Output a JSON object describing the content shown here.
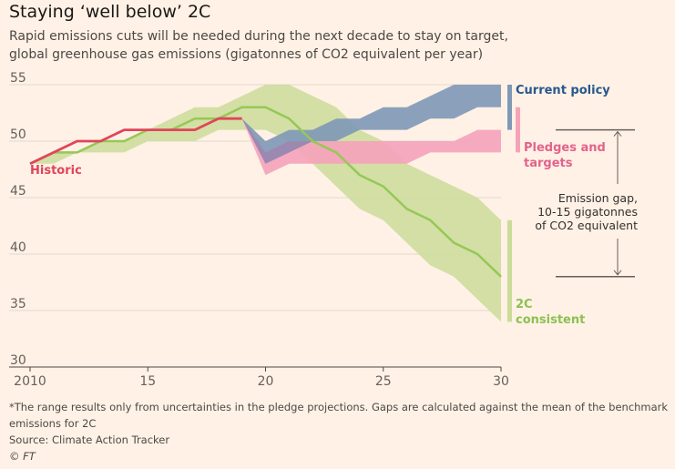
{
  "title": "Staying ‘well below’ 2C",
  "subtitle_lines": [
    "Rapid emissions cuts will be needed during the next decade to stay on target,",
    "global greenhouse gas emissions (gigatonnes of CO2 equivalent per year)"
  ],
  "footnote_lines": [
    "*The range results only from uncertainties in the pledge projections. Gaps are calculated against the mean of the benchmark",
    "emissions for 2C"
  ],
  "source": "Source: Climate Action Tracker",
  "copyright": "© FT",
  "colors": {
    "historic": "#e0455a",
    "current_policy": "#26588f",
    "current_policy_band": "#7e98b6",
    "pledges": "#e3628d",
    "pledges_band": "#f5a2ba",
    "overlap_band": "#9d88b0",
    "consistent": "#8cc152",
    "consistent_line": "#95c855",
    "consistent_band": "#cbdc9a",
    "gap_line": "#66605c",
    "text": "#33302e"
  },
  "chart_data": {
    "type": "area",
    "x_range": [
      2010,
      2030
    ],
    "y_range": [
      30,
      55
    ],
    "y_ticks": [
      30,
      35,
      40,
      45,
      50,
      55
    ],
    "x_ticks": [
      2010,
      2015,
      2020,
      2025,
      2030
    ],
    "x_tick_labels": [
      "2010",
      "15",
      "20",
      "25",
      "30"
    ],
    "grid": "horizontal",
    "series": [
      {
        "name": "Historic",
        "kind": "line",
        "x": [
          2010,
          2011,
          2012,
          2013,
          2014,
          2015,
          2016,
          2017,
          2018,
          2019
        ],
        "y": [
          48,
          49,
          50,
          50,
          51,
          51,
          51,
          51,
          52,
          52
        ]
      },
      {
        "name": "Current policy",
        "kind": "band",
        "x": [
          2019,
          2020,
          2021,
          2022,
          2023,
          2024,
          2025,
          2026,
          2027,
          2028,
          2029,
          2030
        ],
        "low": [
          52,
          48,
          49,
          50,
          50,
          51,
          51,
          51,
          52,
          52,
          53,
          53
        ],
        "high": [
          52,
          50,
          51,
          51,
          52,
          52,
          53,
          53,
          54,
          55,
          55,
          55
        ]
      },
      {
        "name": "Pledges and targets",
        "kind": "band",
        "x": [
          2019,
          2020,
          2021,
          2022,
          2023,
          2024,
          2025,
          2026,
          2027,
          2028,
          2029,
          2030
        ],
        "low": [
          52,
          47,
          48,
          48,
          48,
          48,
          48,
          48,
          49,
          49,
          49,
          49
        ],
        "high": [
          52,
          49,
          50,
          50,
          50,
          50,
          50,
          50,
          50,
          50,
          51,
          51
        ]
      },
      {
        "name": "2C consistent",
        "kind": "band_with_line",
        "x": [
          2010,
          2011,
          2012,
          2013,
          2014,
          2015,
          2016,
          2017,
          2018,
          2019,
          2020,
          2021,
          2022,
          2023,
          2024,
          2025,
          2026,
          2027,
          2028,
          2029,
          2030
        ],
        "low": [
          48,
          48,
          49,
          49,
          49,
          50,
          50,
          50,
          51,
          51,
          51,
          50,
          48,
          46,
          44,
          43,
          41,
          39,
          38,
          36,
          34
        ],
        "high": [
          48,
          49,
          49,
          50,
          50,
          51,
          52,
          53,
          53,
          54,
          55,
          55,
          54,
          53,
          51,
          50,
          48,
          47,
          46,
          45,
          43
        ],
        "mean": [
          48,
          49,
          49,
          50,
          50,
          51,
          51,
          52,
          52,
          53,
          53,
          52,
          50,
          49,
          47,
          46,
          44,
          43,
          41,
          40,
          38
        ]
      }
    ],
    "labels": {
      "historic": "Historic",
      "current_policy": "Current policy",
      "pledges": [
        "Pledges and",
        "targets"
      ],
      "consistent": [
        "2C",
        "consistent"
      ],
      "gap": [
        "Emission gap,",
        "10-15 gigatonnes",
        "of CO2 equivalent"
      ]
    },
    "emission_gap": {
      "from": 51,
      "to": 38
    }
  }
}
